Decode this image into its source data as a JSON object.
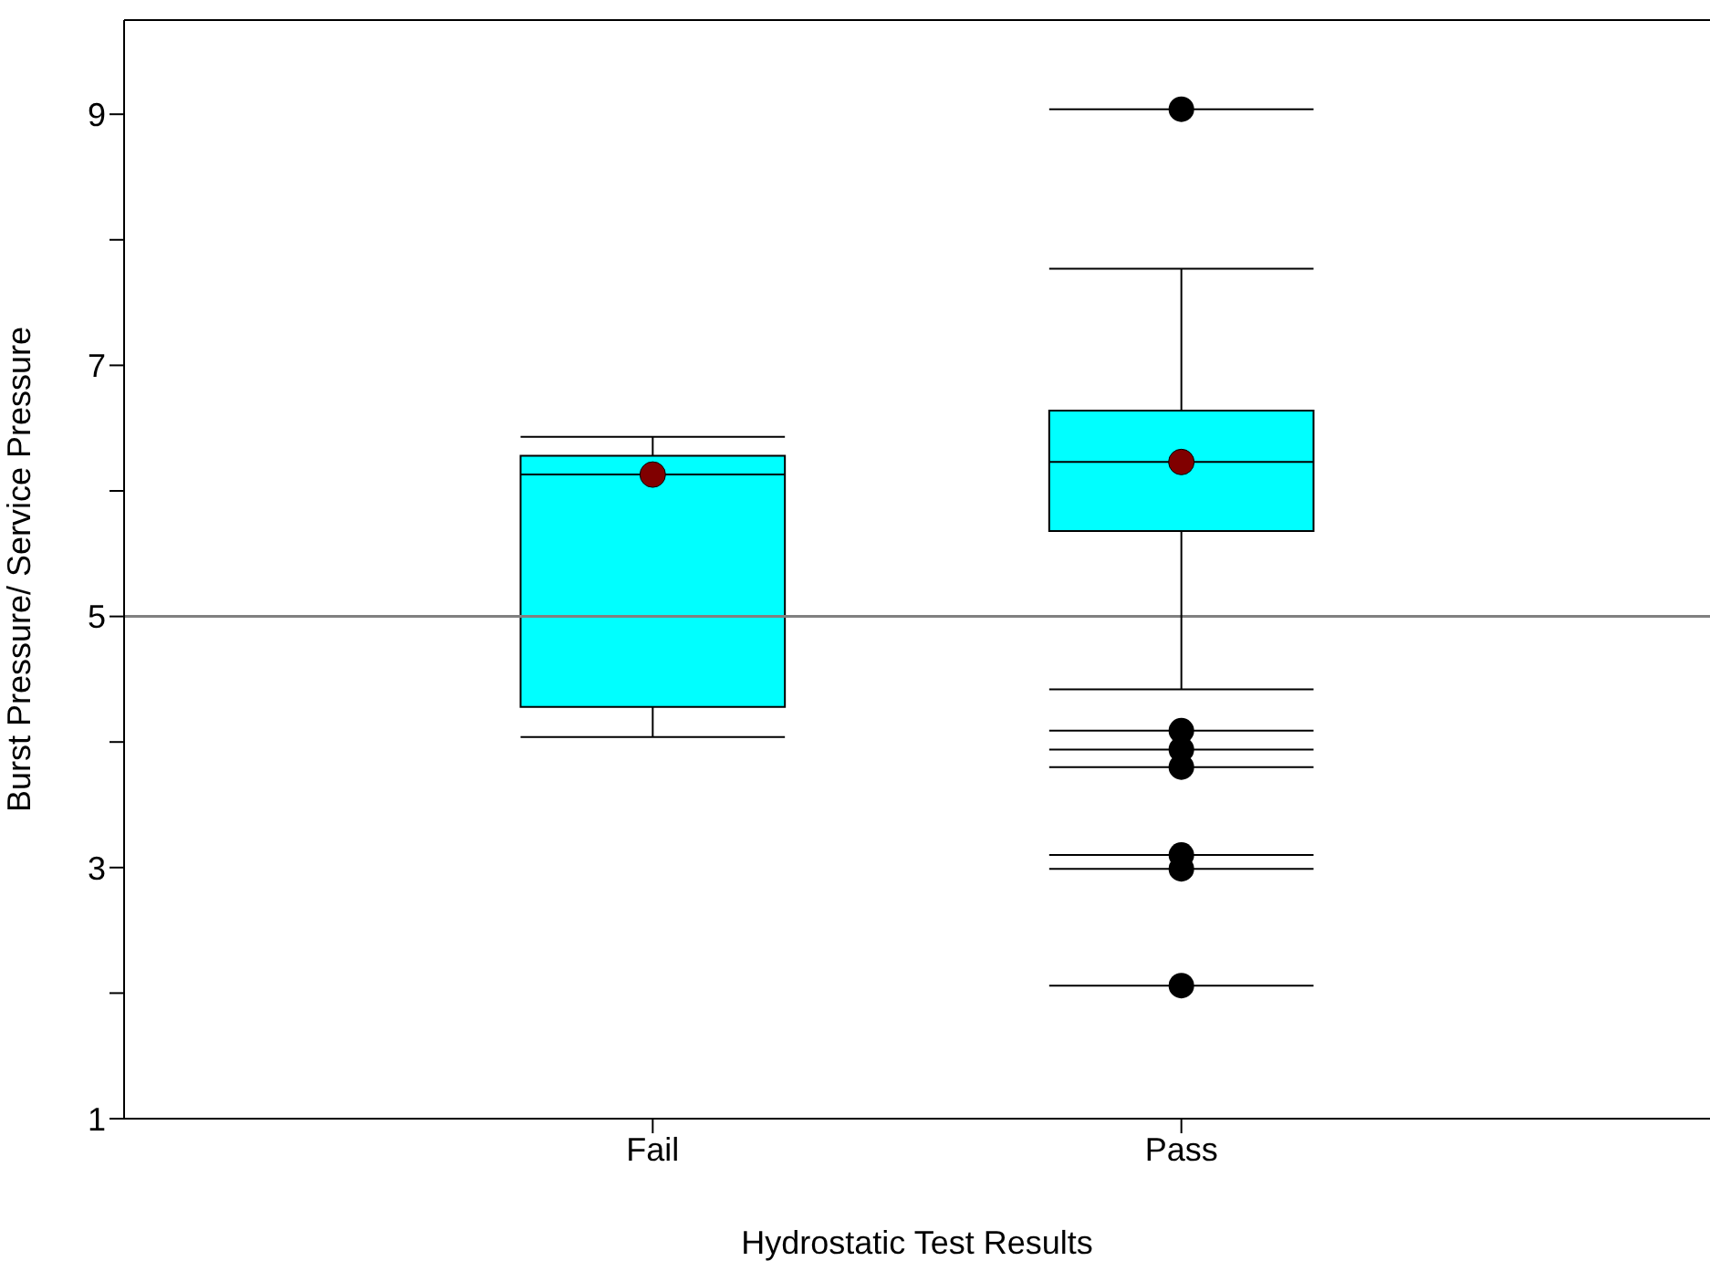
{
  "chart_data": {
    "type": "box",
    "xlabel": "Hydrostatic Test Results",
    "ylabel": "Burst Pressure/ Service Pressure",
    "categories": [
      "Fail",
      "Pass"
    ],
    "color": "#00ffff",
    "boxes": [
      {
        "low": 4.04,
        "q1": 4.28,
        "median": 6.13,
        "q3": 6.28,
        "high": 6.43,
        "mean": 6.13
      },
      {
        "low": 4.42,
        "q1": 5.68,
        "median": 6.23,
        "q3": 6.64,
        "high": 7.77,
        "mean": 6.23,
        "outliers": [
          9.04,
          4.09,
          3.94,
          3.8,
          3.1,
          2.99,
          2.06
        ]
      }
    ],
    "ylim": [
      1,
      9.75
    ],
    "yticks": [
      1,
      {
        "value": 2,
        "label": null
      },
      3,
      {
        "value": 4,
        "label": null
      },
      5,
      {
        "value": 6,
        "label": null
      },
      7,
      {
        "value": 8,
        "label": null
      },
      9
    ],
    "ref_lines": [
      {
        "axis": "y",
        "value": 5,
        "color": "#808080"
      }
    ]
  }
}
